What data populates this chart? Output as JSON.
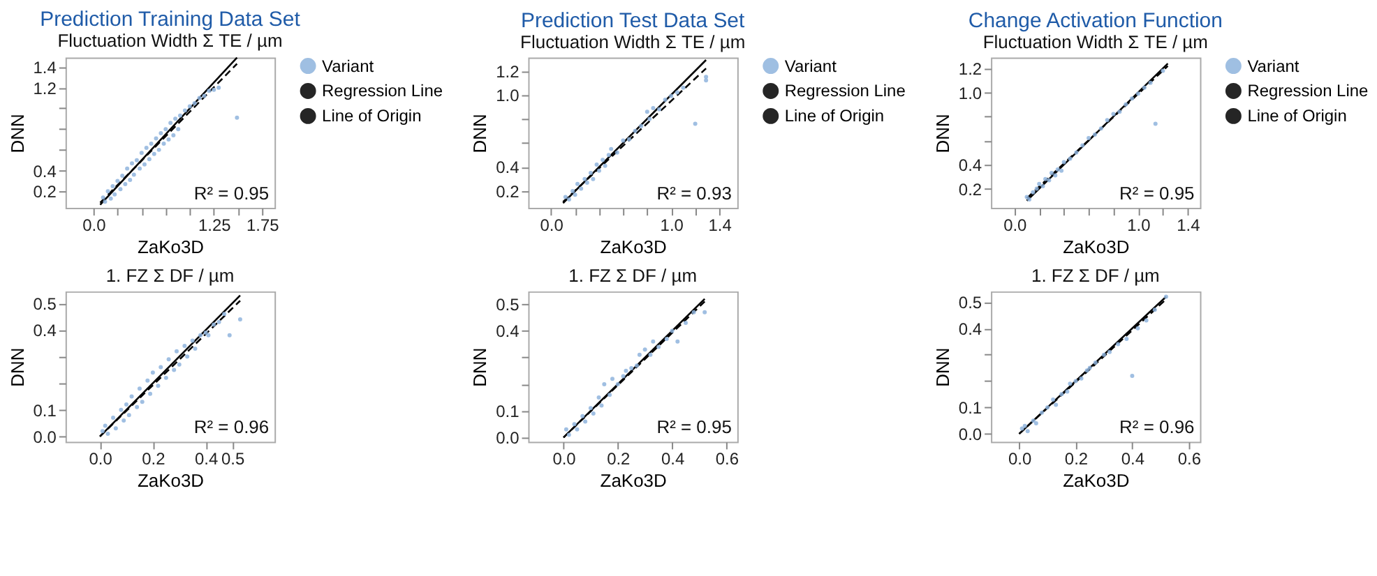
{
  "chart_data": [
    {
      "type": "scatter",
      "title": "Prediction Training Data Set",
      "subtitle": "Fluctuation Width Σ TE / µm",
      "xlabel": "ZaKo3D",
      "ylabel": "DNN",
      "legend": "right",
      "xlim": [
        -0.29,
        1.88
      ],
      "ylim": [
        0.04,
        1.49
      ],
      "xticks": [
        {
          "value": 0,
          "label": "0.0"
        },
        {
          "value": 0.25,
          "label": null
        },
        {
          "value": 0.5,
          "label": null
        },
        {
          "value": 0.75,
          "label": null
        },
        {
          "value": 1,
          "label": null
        },
        1.25,
        {
          "value": 1.5,
          "label": null
        },
        1.75
      ],
      "yticks": [
        0.2,
        0.4,
        {
          "value": 0.6,
          "label": null
        },
        {
          "value": 0.8,
          "label": null
        },
        {
          "value": 1.0,
          "label": null
        },
        1.2,
        1.4
      ],
      "series": [
        {
          "name": "Variant",
          "marker": "circle",
          "color": "#8fb4dd",
          "x": [
            0.1,
            0.12,
            0.15,
            0.18,
            0.2,
            0.22,
            0.25,
            0.28,
            0.3,
            0.33,
            0.35,
            0.38,
            0.4,
            0.42,
            0.45,
            0.48,
            0.5,
            0.53,
            0.55,
            0.58,
            0.6,
            0.63,
            0.65,
            0.68,
            0.7,
            0.73,
            0.75,
            0.78,
            0.8,
            0.83,
            0.85,
            0.88,
            0.9,
            0.95,
            1.0,
            1.05,
            1.1,
            1.15,
            1.2,
            1.25,
            1.3,
            1.49
          ],
          "values": [
            0.14,
            0.1,
            0.2,
            0.13,
            0.25,
            0.17,
            0.3,
            0.22,
            0.35,
            0.27,
            0.42,
            0.31,
            0.47,
            0.36,
            0.5,
            0.42,
            0.57,
            0.46,
            0.62,
            0.51,
            0.66,
            0.56,
            0.71,
            0.6,
            0.76,
            0.66,
            0.8,
            0.7,
            0.86,
            0.74,
            0.9,
            0.8,
            0.93,
            0.98,
            1.02,
            1.05,
            1.1,
            1.12,
            1.17,
            1.18,
            1.2,
            0.91
          ]
        },
        {
          "name": "Regression Line",
          "type": "line",
          "line_style": "dashed",
          "color": "#000000",
          "x": [
            0.07,
            1.49
          ],
          "values": [
            0.09,
            1.43
          ]
        },
        {
          "name": "Line of Origin",
          "type": "line",
          "line_style": "solid",
          "color": "#000000",
          "x": [
            0.07,
            1.49
          ],
          "values": [
            0.07,
            1.49
          ]
        }
      ],
      "annotations": [
        "R² = 0.95"
      ]
    },
    {
      "type": "scatter",
      "title": "1. FZ Σ DF / µm",
      "xlabel": "ZaKo3D",
      "ylabel": "DNN",
      "xlim": [
        -0.13,
        0.66
      ],
      "ylim": [
        -0.02,
        0.545
      ],
      "xticks": [
        {
          "value": 0,
          "label": "0.0"
        },
        0.2,
        0.4,
        0.5
      ],
      "yticks": [
        {
          "value": 0,
          "label": "0.0"
        },
        0.1,
        {
          "value": 0.2,
          "label": null
        },
        {
          "value": 0.3,
          "label": null
        },
        0.4,
        0.5
      ],
      "series": [
        {
          "marker": "circle",
          "color": "#8fb4dd",
          "x": [
            0.01,
            0.02,
            0.03,
            0.05,
            0.06,
            0.08,
            0.09,
            0.1,
            0.11,
            0.12,
            0.14,
            0.15,
            0.16,
            0.18,
            0.19,
            0.2,
            0.22,
            0.23,
            0.25,
            0.26,
            0.28,
            0.29,
            0.3,
            0.32,
            0.33,
            0.35,
            0.36,
            0.38,
            0.4,
            0.41,
            0.43,
            0.45,
            0.47,
            0.49,
            0.53
          ],
          "values": [
            0.02,
            0.04,
            0.01,
            0.07,
            0.03,
            0.1,
            0.06,
            0.12,
            0.08,
            0.15,
            0.11,
            0.18,
            0.13,
            0.21,
            0.16,
            0.24,
            0.19,
            0.26,
            0.22,
            0.29,
            0.25,
            0.32,
            0.27,
            0.34,
            0.3,
            0.36,
            0.33,
            0.38,
            0.39,
            0.38,
            0.42,
            0.43,
            0.46,
            0.38,
            0.44
          ]
        },
        {
          "type": "line",
          "line_style": "dashed",
          "color": "#000000",
          "x": [
            0.0,
            0.53
          ],
          "values": [
            0.0,
            0.51
          ]
        },
        {
          "type": "line",
          "line_style": "solid",
          "color": "#000000",
          "x": [
            0.0,
            0.53
          ],
          "values": [
            0.0,
            0.53
          ]
        }
      ],
      "annotations": [
        "R² = 0.96"
      ]
    },
    {
      "type": "scatter",
      "title": "Prediction Test Data Set",
      "subtitle": "Fluctuation Width Σ TE / µm",
      "xlabel": "ZaKo3D",
      "ylabel": "DNN",
      "legend": "right",
      "xlim": [
        -0.19,
        1.55
      ],
      "ylim": [
        0.06,
        1.31
      ],
      "xticks": [
        {
          "value": 0,
          "label": "0.0"
        },
        {
          "value": 0.2,
          "label": null
        },
        {
          "value": 0.4,
          "label": null
        },
        {
          "value": 0.6,
          "label": null
        },
        {
          "value": 0.8,
          "label": null
        },
        {
          "value": 1,
          "label": "1.0"
        },
        {
          "value": 1.2,
          "label": null
        },
        1.4
      ],
      "yticks": [
        0.2,
        0.4,
        {
          "value": 0.6,
          "label": null
        },
        {
          "value": 0.8,
          "label": null
        },
        {
          "value": 1,
          "label": "1.0"
        },
        1.2
      ],
      "series": [
        {
          "name": "Variant",
          "marker": "circle",
          "color": "#8fb4dd",
          "x": [
            0.12,
            0.15,
            0.18,
            0.2,
            0.22,
            0.25,
            0.28,
            0.3,
            0.33,
            0.35,
            0.38,
            0.4,
            0.43,
            0.45,
            0.48,
            0.5,
            0.55,
            0.6,
            0.65,
            0.7,
            0.75,
            0.8,
            0.82,
            0.85,
            0.9,
            0.95,
            1.0,
            1.05,
            1.1,
            1.2,
            1.29,
            1.29
          ],
          "values": [
            0.15,
            0.13,
            0.2,
            0.17,
            0.26,
            0.22,
            0.3,
            0.27,
            0.35,
            0.3,
            0.42,
            0.37,
            0.46,
            0.41,
            0.5,
            0.55,
            0.52,
            0.62,
            0.63,
            0.7,
            0.74,
            0.86,
            0.8,
            0.89,
            0.88,
            0.96,
            0.99,
            1.02,
            1.06,
            0.76,
            1.12,
            1.15
          ]
        },
        {
          "name": "Regression Line",
          "type": "line",
          "line_style": "dashed",
          "color": "#000000",
          "x": [
            0.1,
            1.29
          ],
          "values": [
            0.11,
            1.22
          ]
        },
        {
          "name": "Line of Origin",
          "type": "line",
          "line_style": "solid",
          "color": "#000000",
          "x": [
            0.1,
            1.29
          ],
          "values": [
            0.1,
            1.29
          ]
        }
      ],
      "annotations": [
        "R² = 0.93"
      ]
    },
    {
      "type": "scatter",
      "title": "1. FZ Σ DF / µm",
      "xlabel": "ZaKo3D",
      "ylabel": "DNN",
      "xlim": [
        -0.13,
        0.64
      ],
      "ylim": [
        -0.016,
        0.548
      ],
      "xticks": [
        {
          "value": 0,
          "label": "0.0"
        },
        0.2,
        0.4,
        0.6
      ],
      "yticks": [
        {
          "value": 0,
          "label": "0.0"
        },
        0.1,
        {
          "value": 0.2,
          "label": null
        },
        {
          "value": 0.3,
          "label": null
        },
        0.4,
        0.5
      ],
      "series": [
        {
          "marker": "circle",
          "color": "#8fb4dd",
          "x": [
            0.01,
            0.02,
            0.04,
            0.05,
            0.07,
            0.08,
            0.1,
            0.11,
            0.13,
            0.14,
            0.15,
            0.17,
            0.18,
            0.2,
            0.22,
            0.23,
            0.25,
            0.27,
            0.28,
            0.3,
            0.32,
            0.33,
            0.35,
            0.38,
            0.4,
            0.42,
            0.45,
            0.48,
            0.52
          ],
          "values": [
            0.03,
            0.01,
            0.05,
            0.03,
            0.08,
            0.06,
            0.11,
            0.09,
            0.15,
            0.12,
            0.2,
            0.16,
            0.22,
            0.2,
            0.23,
            0.25,
            0.26,
            0.27,
            0.31,
            0.33,
            0.31,
            0.36,
            0.34,
            0.37,
            0.4,
            0.36,
            0.43,
            0.47,
            0.47
          ]
        },
        {
          "type": "line",
          "line_style": "dashed",
          "color": "#000000",
          "x": [
            0.0,
            0.52
          ],
          "values": [
            0.0,
            0.51
          ]
        },
        {
          "type": "line",
          "line_style": "solid",
          "color": "#000000",
          "x": [
            0.0,
            0.52
          ],
          "values": [
            0.0,
            0.52
          ]
        }
      ],
      "annotations": [
        "R² = 0.95"
      ]
    },
    {
      "type": "scatter",
      "title": "Change Activation Function",
      "subtitle": "Fluctuation Width Σ TE / µm",
      "xlabel": "ZaKo3D",
      "ylabel": "DNN",
      "legend": "right",
      "xlim": [
        -0.19,
        1.5
      ],
      "ylim": [
        0.04,
        1.29
      ],
      "xticks": [
        {
          "value": 0,
          "label": "0.0"
        },
        {
          "value": 0.2,
          "label": null
        },
        {
          "value": 0.4,
          "label": null
        },
        {
          "value": 0.6,
          "label": null
        },
        {
          "value": 0.8,
          "label": null
        },
        {
          "value": 1,
          "label": "1.0"
        },
        {
          "value": 1.2,
          "label": null
        },
        1.4
      ],
      "yticks": [
        0.2,
        0.4,
        {
          "value": 0.6,
          "label": null
        },
        {
          "value": 0.8,
          "label": null
        },
        {
          "value": 1,
          "label": "1.0"
        },
        1.2
      ],
      "series": [
        {
          "name": "Variant",
          "marker": "circle",
          "color": "#8fb4dd",
          "x": [
            0.1,
            0.12,
            0.15,
            0.18,
            0.2,
            0.23,
            0.25,
            0.28,
            0.3,
            0.33,
            0.35,
            0.38,
            0.4,
            0.45,
            0.5,
            0.55,
            0.6,
            0.65,
            0.7,
            0.75,
            0.8,
            0.85,
            0.9,
            0.95,
            1.0,
            1.05,
            1.1,
            1.14,
            1.2
          ],
          "values": [
            0.13,
            0.11,
            0.17,
            0.2,
            0.24,
            0.22,
            0.28,
            0.27,
            0.33,
            0.31,
            0.36,
            0.35,
            0.42,
            0.45,
            0.5,
            0.56,
            0.62,
            0.65,
            0.7,
            0.77,
            0.82,
            0.84,
            0.9,
            0.95,
            0.99,
            1.04,
            1.08,
            0.74,
            1.18
          ]
        },
        {
          "name": "Regression Line",
          "type": "line",
          "line_style": "dashed",
          "color": "#000000",
          "x": [
            0.1,
            1.24
          ],
          "values": [
            0.12,
            1.22
          ]
        },
        {
          "name": "Line of Origin",
          "type": "line",
          "line_style": "solid",
          "color": "#000000",
          "x": [
            0.1,
            1.24
          ],
          "values": [
            0.1,
            1.24
          ]
        }
      ],
      "annotations": [
        "R² = 0.95"
      ]
    },
    {
      "type": "scatter",
      "title": "1. FZ Σ DF / µm",
      "xlabel": "ZaKo3D",
      "ylabel": "DNN",
      "xlim": [
        -0.1,
        0.64
      ],
      "ylim": [
        -0.03,
        0.54
      ],
      "xticks": [
        {
          "value": 0,
          "label": "0.0"
        },
        0.2,
        0.4,
        0.6
      ],
      "yticks": [
        {
          "value": 0,
          "label": "0.0"
        },
        0.1,
        {
          "value": 0.2,
          "label": null
        },
        {
          "value": 0.3,
          "label": null
        },
        0.4,
        0.5
      ],
      "series": [
        {
          "marker": "circle",
          "color": "#8fb4dd",
          "x": [
            0.01,
            0.02,
            0.03,
            0.05,
            0.06,
            0.08,
            0.1,
            0.12,
            0.13,
            0.15,
            0.17,
            0.18,
            0.2,
            0.22,
            0.24,
            0.25,
            0.27,
            0.3,
            0.32,
            0.35,
            0.38,
            0.4,
            0.42,
            0.45,
            0.48,
            0.52
          ],
          "values": [
            0.02,
            0.03,
            0.01,
            0.05,
            0.04,
            0.08,
            0.1,
            0.13,
            0.11,
            0.15,
            0.16,
            0.19,
            0.2,
            0.21,
            0.24,
            0.25,
            0.27,
            0.3,
            0.31,
            0.34,
            0.36,
            0.22,
            0.4,
            0.43,
            0.47,
            0.52
          ]
        },
        {
          "type": "line",
          "line_style": "dashed",
          "color": "#000000",
          "x": [
            0.0,
            0.52
          ],
          "values": [
            0.0,
            0.51
          ]
        },
        {
          "type": "line",
          "line_style": "solid",
          "color": "#000000",
          "x": [
            0.0,
            0.52
          ],
          "values": [
            0.0,
            0.52
          ]
        }
      ],
      "annotations": [
        "R² = 0.96"
      ]
    }
  ]
}
